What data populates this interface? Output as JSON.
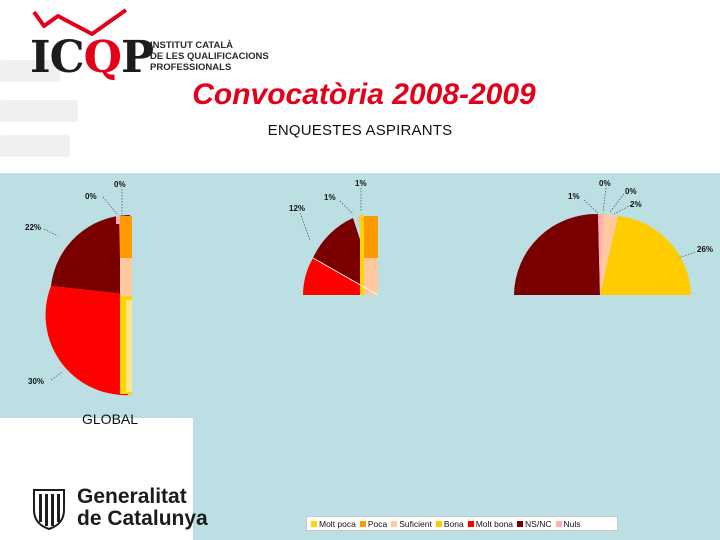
{
  "header": {
    "logo_text_left": "IC",
    "logo_text_q": "Q",
    "logo_text_right": "P",
    "institute_lines": [
      "INSTITUT CATALÀ",
      "DE LES QUALIFICACIONS",
      "PROFESSIONALS"
    ],
    "title": "Convocatòria 2008-2009",
    "subtitle": "ENQUESTES ASPIRANTS"
  },
  "footer": {
    "global_label": "GLOBAL",
    "org_line1": "Generalitat",
    "org_line2": "de Catalunya"
  },
  "colors": {
    "band": "#bcdfe3",
    "Molt poca": "#ffd400",
    "Poca": "#ff9900",
    "Suficient": "#ffc9a0",
    "Bona": "#ffcc00",
    "Molt bona": "#ff0000",
    "NS/NC": "#7a0000",
    "Nuls": "#ffb0b0"
  },
  "chart_data": [
    {
      "type": "pie",
      "name": "GLOBAL",
      "partial": "left half visible",
      "slices": [
        {
          "category": "Nuls",
          "label": "0%"
        },
        {
          "category": "Molt poca",
          "label": "0%"
        },
        {
          "category": "Poca",
          "label": ""
        },
        {
          "category": "Suficient",
          "label": ""
        },
        {
          "category": "Bona",
          "label": ""
        },
        {
          "category": "Molt bona",
          "label": "30%"
        },
        {
          "category": "NS/NC",
          "label": "22%"
        }
      ],
      "leader_labels": [
        "0%",
        "0%",
        "22%",
        "30%"
      ]
    },
    {
      "type": "pie",
      "name": "chart 2",
      "partial": "upper-left quarter visible",
      "leader_labels": [
        "1%",
        "1%",
        "12%"
      ]
    },
    {
      "type": "pie",
      "name": "chart 3",
      "partial": "upper half visible",
      "leader_labels": [
        "0%",
        "1%",
        "0%",
        "2%",
        "26%"
      ]
    }
  ],
  "legend": {
    "items": [
      {
        "label": "Molt poca",
        "color": "#ffd400"
      },
      {
        "label": "Poca",
        "color": "#ff9900"
      },
      {
        "label": "Suficient",
        "color": "#ffc9a0"
      },
      {
        "label": "Bona",
        "color": "#ffcc00"
      },
      {
        "label": "Molt bona",
        "color": "#ff0000"
      },
      {
        "label": "NS/NC",
        "color": "#7a0000"
      },
      {
        "label": "Nuls",
        "color": "#ffb0b0"
      }
    ]
  }
}
